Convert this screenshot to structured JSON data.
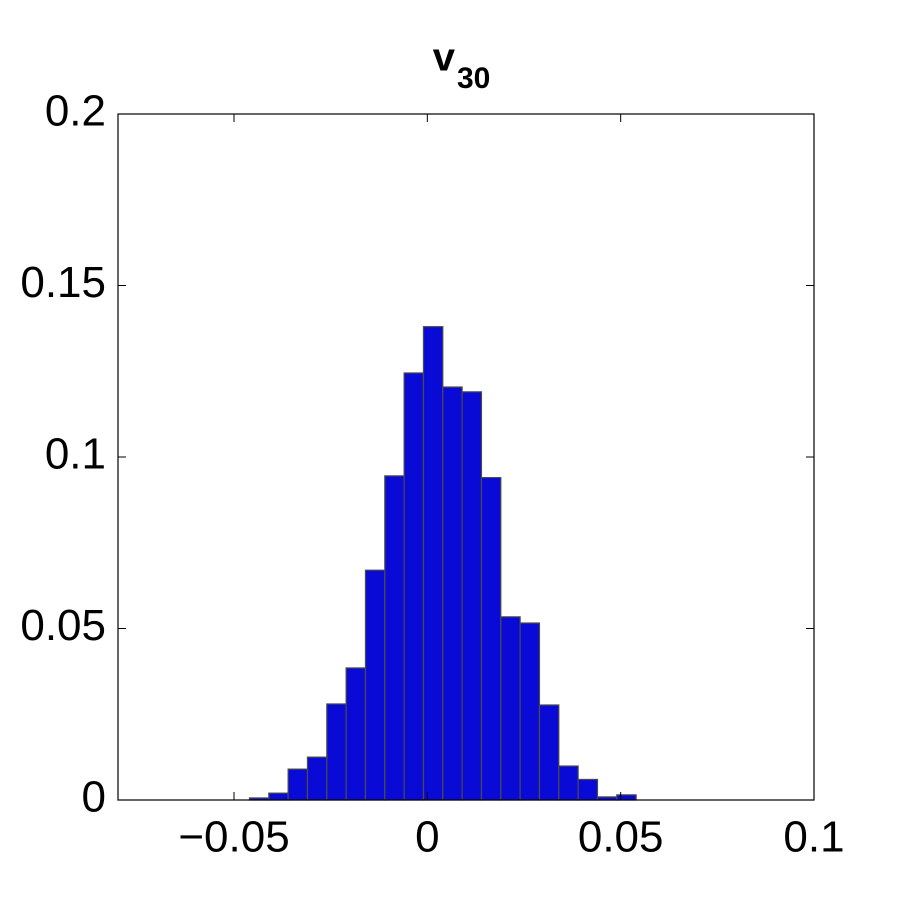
{
  "chart_data": {
    "type": "histogram",
    "title": "v",
    "title_subscript": "30",
    "bins": [
      -0.046,
      -0.041,
      -0.036,
      -0.031,
      -0.026,
      -0.021,
      -0.016,
      -0.011,
      -0.006,
      -0.001,
      0.004,
      0.009,
      0.014,
      0.019,
      0.024,
      0.029,
      0.034,
      0.039,
      0.044,
      0.049,
      0.054
    ],
    "values": [
      0.0006,
      0.002,
      0.009,
      0.0125,
      0.028,
      0.0385,
      0.067,
      0.0945,
      0.1245,
      0.138,
      0.1204,
      0.119,
      0.094,
      0.0534,
      0.0516,
      0.0277,
      0.0099,
      0.006,
      0.0009,
      0.0015
    ],
    "color": "#0a0ad6",
    "edgecolor": "#4a4a4a",
    "xlim": [
      -0.08,
      0.1
    ],
    "xticks": [
      {
        "value": -0.05,
        "label": "−0.05"
      },
      0,
      0.05,
      0.1
    ],
    "ylim": [
      0,
      0.2
    ],
    "yticks": [
      0,
      0.05,
      0.1,
      0.15,
      0.2
    ],
    "grid": false
  }
}
